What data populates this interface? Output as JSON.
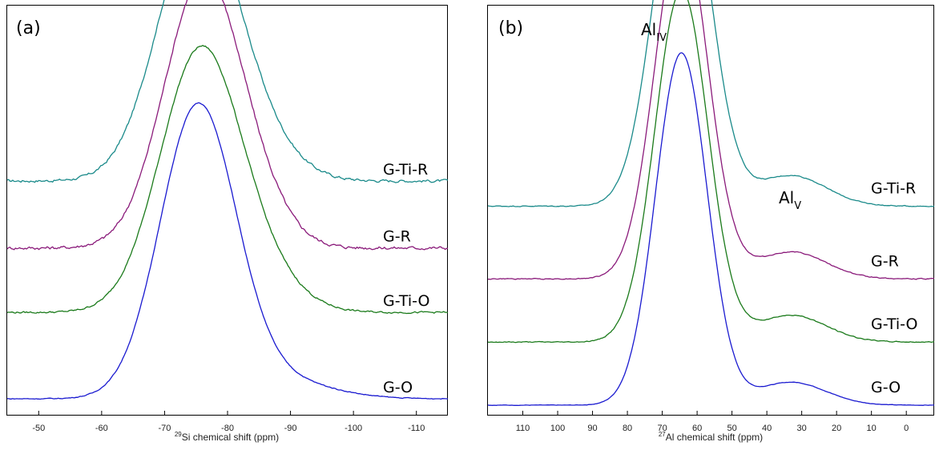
{
  "chart_data": [
    {
      "type": "line",
      "panel_label": "(a)",
      "xlabel_sup": "29",
      "xlabel": "Si chemical shift (ppm)",
      "xlim": [
        -45,
        -115
      ],
      "xticks": [
        -50,
        -60,
        -70,
        -80,
        -90,
        -100,
        -110
      ],
      "y_axis_visible": false,
      "series": [
        {
          "name": "G-Ti-R",
          "color": "#1a8a8a",
          "baseline": 0.585,
          "center": -75.3,
          "height": 0.69,
          "width": 6.4,
          "shoulder": {
            "center": -85,
            "height": 0.08,
            "width": 6
          },
          "noise": 0.006
        },
        {
          "name": "G-R",
          "color": "#8a1a7a",
          "baseline": 0.405,
          "center": -76.2,
          "height": 0.727,
          "width": 6.2,
          "shoulder": {
            "center": -86,
            "height": 0.05,
            "width": 5
          },
          "noise": 0.007
        },
        {
          "name": "G-Ti-O",
          "color": "#1a7a1a",
          "baseline": 0.232,
          "center": -75.7,
          "height": 0.699,
          "width": 6.4,
          "shoulder": {
            "center": -86,
            "height": 0.07,
            "width": 6
          },
          "noise": 0.004
        },
        {
          "name": "G-O",
          "color": "#1a1ad0",
          "baseline": 0.0,
          "center": -75.3,
          "height": 0.78,
          "width": 6.0,
          "shoulder": {
            "center": -88,
            "height": 0.05,
            "width": 8
          },
          "noise": 0.002
        }
      ]
    },
    {
      "type": "line",
      "panel_label": "(b)",
      "xlabel_sup": "27",
      "xlabel": "Al chemical shift (ppm)",
      "xlim": [
        120,
        -8
      ],
      "xticks": [
        110,
        100,
        90,
        80,
        70,
        60,
        50,
        40,
        30,
        20,
        10,
        0
      ],
      "y_axis_visible": false,
      "annotations": [
        {
          "text": "Al",
          "sub": "IV",
          "x": 65
        },
        {
          "text": "Al",
          "sub": "V",
          "x": 37
        }
      ],
      "series": [
        {
          "name": "G-Ti-R",
          "color": "#1a8a8a",
          "baseline": 0.52,
          "center": 64.3,
          "height": 0.93,
          "width": 8.0,
          "shoulder": {
            "center": 33,
            "height": 0.08,
            "width": 10
          },
          "noise": 0.002
        },
        {
          "name": "G-R",
          "color": "#8a1a7a",
          "baseline": 0.33,
          "center": 64.5,
          "height": 0.92,
          "width": 7.6,
          "shoulder": {
            "center": 33,
            "height": 0.07,
            "width": 10
          },
          "noise": 0.002
        },
        {
          "name": "G-Ti-O",
          "color": "#1a7a1a",
          "baseline": 0.165,
          "center": 64.5,
          "height": 0.92,
          "width": 7.6,
          "shoulder": {
            "center": 33,
            "height": 0.07,
            "width": 10
          },
          "noise": 0.002
        },
        {
          "name": "G-O",
          "color": "#1a1ad0",
          "baseline": 0.0,
          "center": 64.5,
          "height": 0.92,
          "width": 7.4,
          "shoulder": {
            "center": 33,
            "height": 0.06,
            "width": 10
          },
          "noise": 0.001
        }
      ]
    }
  ]
}
